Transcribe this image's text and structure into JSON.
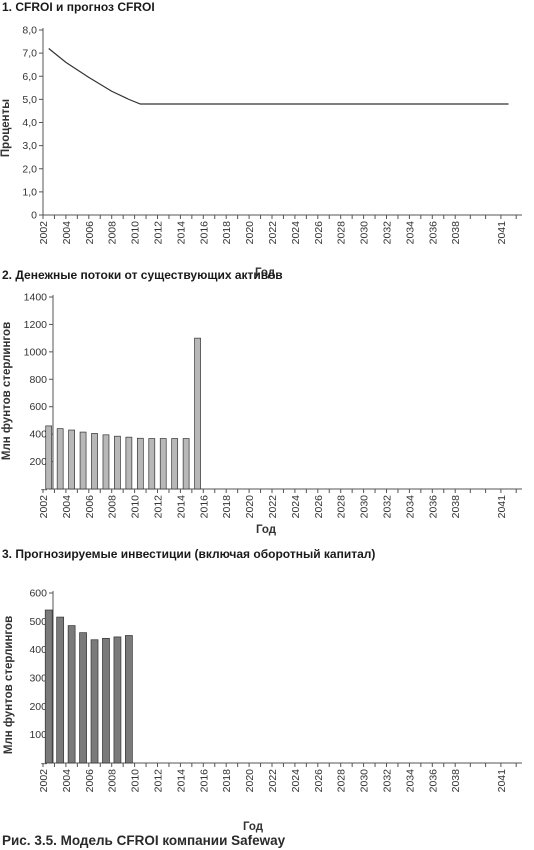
{
  "chart_data": [
    {
      "type": "line",
      "title": "1. CFROI и прогноз CFROI",
      "xlabel": "Год",
      "ylabel": "Проценты",
      "ylim": [
        0,
        8
      ],
      "y_ticks": [
        "0",
        "1,0",
        "2,0",
        "3,0",
        "4,0",
        "5,0",
        "6,0",
        "7,0",
        "8,0"
      ],
      "x_ticks": [
        "2002",
        "2004",
        "2006",
        "2008",
        "2010",
        "2012",
        "2014",
        "2016",
        "2018",
        "2020",
        "2022",
        "2024",
        "2026",
        "2028",
        "2030",
        "2032",
        "2034",
        "2036",
        "2038",
        "2041"
      ],
      "series": [
        {
          "x": [
            2002.5,
            2004,
            2006,
            2008,
            2009.5,
            2010.5,
            2041.5
          ],
          "values": [
            7.2,
            6.6,
            5.95,
            5.35,
            5.0,
            4.8,
            4.8
          ]
        }
      ],
      "grid": false,
      "color": "#333333"
    },
    {
      "type": "bar",
      "title": "2. Денежные потоки от существующих активов",
      "xlabel": "Год",
      "ylabel": "Млн фунтов стерлингов",
      "ylim": [
        0,
        1400
      ],
      "y_ticks": [
        "–",
        "200",
        "400",
        "600",
        "800",
        "1000",
        "1200",
        "1400"
      ],
      "x_ticks": [
        "2002",
        "2004",
        "2006",
        "2008",
        "2010",
        "2012",
        "2014",
        "2016",
        "2018",
        "2020",
        "2022",
        "2024",
        "2026",
        "2028",
        "2030",
        "2032",
        "2034",
        "2036",
        "2038",
        "2041"
      ],
      "categories": [
        2002,
        2003,
        2004,
        2005,
        2006,
        2007,
        2008,
        2009,
        2010,
        2011,
        2012,
        2013,
        2014,
        2015
      ],
      "values": [
        460,
        440,
        430,
        415,
        405,
        395,
        385,
        378,
        370,
        368,
        368,
        368,
        368,
        1100
      ],
      "grid": false,
      "color": "#b8b8b8"
    },
    {
      "type": "bar",
      "title": "3. Прогнозируемые инвестиции (включая оборотный капитал)",
      "xlabel": "Год",
      "ylabel": "Млн фунтов стерлингов",
      "ylim": [
        0,
        600
      ],
      "y_ticks": [
        "–",
        "100",
        "200",
        "300",
        "400",
        "500",
        "600"
      ],
      "x_ticks": [
        "2002",
        "2004",
        "2006",
        "2008",
        "2010",
        "2012",
        "2014",
        "2016",
        "2018",
        "2020",
        "2022",
        "2024",
        "2026",
        "2028",
        "2030",
        "2032",
        "2034",
        "2036",
        "2038",
        "2041"
      ],
      "categories": [
        2002,
        2003,
        2004,
        2005,
        2006,
        2007,
        2008,
        2009
      ],
      "values": [
        540,
        515,
        485,
        460,
        435,
        440,
        445,
        450
      ],
      "grid": false,
      "color": "#7a7a7a"
    }
  ],
  "caption": "Рис. 3.5. Модель CFROI компании Safeway"
}
